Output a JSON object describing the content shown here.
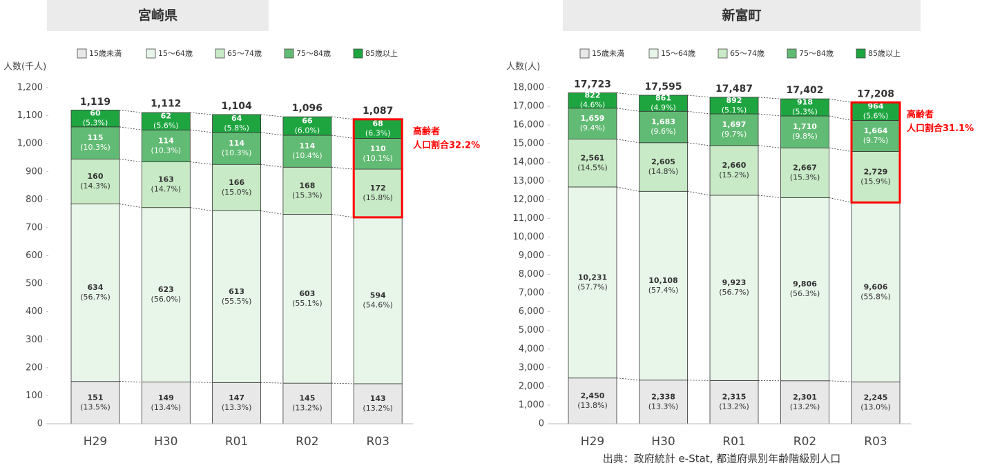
{
  "chart_data": [
    {
      "type": "bar",
      "stacked": true,
      "title": "宮崎県",
      "y_label": "人数(千人)",
      "categories": [
        "H29",
        "H30",
        "R01",
        "R02",
        "R03"
      ],
      "series": [
        {
          "name": "15歳未満",
          "color": "#e8e8e8",
          "label_color": "#333333",
          "values": [
            151,
            149,
            147,
            145,
            143
          ],
          "shares": [
            "(13.5%)",
            "(13.4%)",
            "(13.3%)",
            "(13.2%)",
            "(13.2%)"
          ]
        },
        {
          "name": "15～64歳",
          "color": "#e8f5e9",
          "label_color": "#333333",
          "values": [
            634,
            623,
            613,
            603,
            594
          ],
          "shares": [
            "(56.7%)",
            "(56.0%)",
            "(55.5%)",
            "(55.1%)",
            "(54.6%)"
          ]
        },
        {
          "name": "65～74歳",
          "color": "#c8eac6",
          "label_color": "#333333",
          "values": [
            160,
            163,
            166,
            168,
            172
          ],
          "shares": [
            "(14.3%)",
            "(14.7%)",
            "(15.0%)",
            "(15.3%)",
            "(15.8%)"
          ]
        },
        {
          "name": "75～84歳",
          "color": "#62bb74",
          "label_color": "#ffffff",
          "values": [
            115,
            114,
            114,
            114,
            110
          ],
          "shares": [
            "(10.3%)",
            "(10.3%)",
            "(10.3%)",
            "(10.4%)",
            "(10.1%)"
          ]
        },
        {
          "name": "85歳以上",
          "color": "#1ea540",
          "label_color": "#ffffff",
          "values": [
            60,
            62,
            64,
            66,
            68
          ],
          "shares": [
            "(5.3%)",
            "(5.6%)",
            "(5.8%)",
            "(6.0%)",
            "(6.3%)"
          ]
        }
      ],
      "totals": [
        1119,
        1112,
        1104,
        1096,
        1087
      ],
      "total_labels": [
        "1,119",
        "1,112",
        "1,104",
        "1,096",
        "1,087"
      ],
      "annotation": [
        "高齢者",
        "人口割合32.2%"
      ],
      "ylim": [
        0,
        1200
      ],
      "yticks": [
        0,
        100,
        200,
        300,
        400,
        500,
        600,
        700,
        800,
        900,
        {
          "value": 1000,
          "label": "1,000"
        },
        {
          "value": 1100,
          "label": "1,100"
        },
        {
          "value": 1200,
          "label": "1,200"
        }
      ]
    },
    {
      "type": "bar",
      "stacked": true,
      "title": "新富町",
      "y_label": "人数(人)",
      "categories": [
        "H29",
        "H30",
        "R01",
        "R02",
        "R03"
      ],
      "series": [
        {
          "name": "15歳未満",
          "color": "#e8e8e8",
          "label_color": "#333333",
          "values": [
            2450,
            2338,
            2315,
            2301,
            2245
          ],
          "value_labels": [
            "2,450",
            "2,338",
            "2,315",
            "2,301",
            "2,245"
          ],
          "shares": [
            "(13.8%)",
            "(13.3%)",
            "(13.2%)",
            "(13.2%)",
            "(13.0%)"
          ]
        },
        {
          "name": "15～64歳",
          "color": "#e8f5e9",
          "label_color": "#333333",
          "values": [
            10231,
            10108,
            9923,
            9806,
            9606
          ],
          "value_labels": [
            "10,231",
            "10,108",
            "9,923",
            "9,806",
            "9,606"
          ],
          "shares": [
            "(57.7%)",
            "(57.4%)",
            "(56.7%)",
            "(56.3%)",
            "(55.8%)"
          ]
        },
        {
          "name": "65～74歳",
          "color": "#c8eac6",
          "label_color": "#333333",
          "values": [
            2561,
            2605,
            2660,
            2667,
            2729
          ],
          "value_labels": [
            "2,561",
            "2,605",
            "2,660",
            "2,667",
            "2,729"
          ],
          "shares": [
            "(14.5%)",
            "(14.8%)",
            "(15.2%)",
            "(15.3%)",
            "(15.9%)"
          ]
        },
        {
          "name": "75～84歳",
          "color": "#62bb74",
          "label_color": "#ffffff",
          "values": [
            1659,
            1683,
            1697,
            1710,
            1664
          ],
          "value_labels": [
            "1,659",
            "1,683",
            "1,697",
            "1,710",
            "1,664"
          ],
          "shares": [
            "(9.4%)",
            "(9.6%)",
            "(9.7%)",
            "(9.8%)",
            "(9.7%)"
          ]
        },
        {
          "name": "85歳以上",
          "color": "#1ea540",
          "label_color": "#ffffff",
          "values": [
            822,
            861,
            892,
            918,
            964
          ],
          "shares": [
            "(4.6%)",
            "(4.9%)",
            "(5.1%)",
            "(5.3%)",
            "(5.6%)"
          ]
        }
      ],
      "totals": [
        17723,
        17595,
        17487,
        17402,
        17208
      ],
      "total_labels": [
        "17,723",
        "17,595",
        "17,487",
        "17,402",
        "17,208"
      ],
      "annotation": [
        "高齢者",
        "人口割合31.1%"
      ],
      "ylim": [
        0,
        18000
      ],
      "yticks": [
        0,
        {
          "value": 1000,
          "label": "1,000"
        },
        {
          "value": 2000,
          "label": "2,000"
        },
        {
          "value": 3000,
          "label": "3,000"
        },
        {
          "value": 4000,
          "label": "4,000"
        },
        {
          "value": 5000,
          "label": "5,000"
        },
        {
          "value": 6000,
          "label": "6,000"
        },
        {
          "value": 7000,
          "label": "7,000"
        },
        {
          "value": 8000,
          "label": "8,000"
        },
        {
          "value": 9000,
          "label": "9,000"
        },
        {
          "value": 10000,
          "label": "10,000"
        },
        {
          "value": 11000,
          "label": "11,000"
        },
        {
          "value": 12000,
          "label": "12,000"
        },
        {
          "value": 13000,
          "label": "13,000"
        },
        {
          "value": 14000,
          "label": "14,000"
        },
        {
          "value": 15000,
          "label": "15,000"
        },
        {
          "value": 16000,
          "label": "16,000"
        },
        {
          "value": 17000,
          "label": "17,000"
        },
        {
          "value": 18000,
          "label": "18,000"
        }
      ]
    }
  ],
  "source": "出典：政府統計 e-Stat, 都道府県別年齢階級別人口"
}
